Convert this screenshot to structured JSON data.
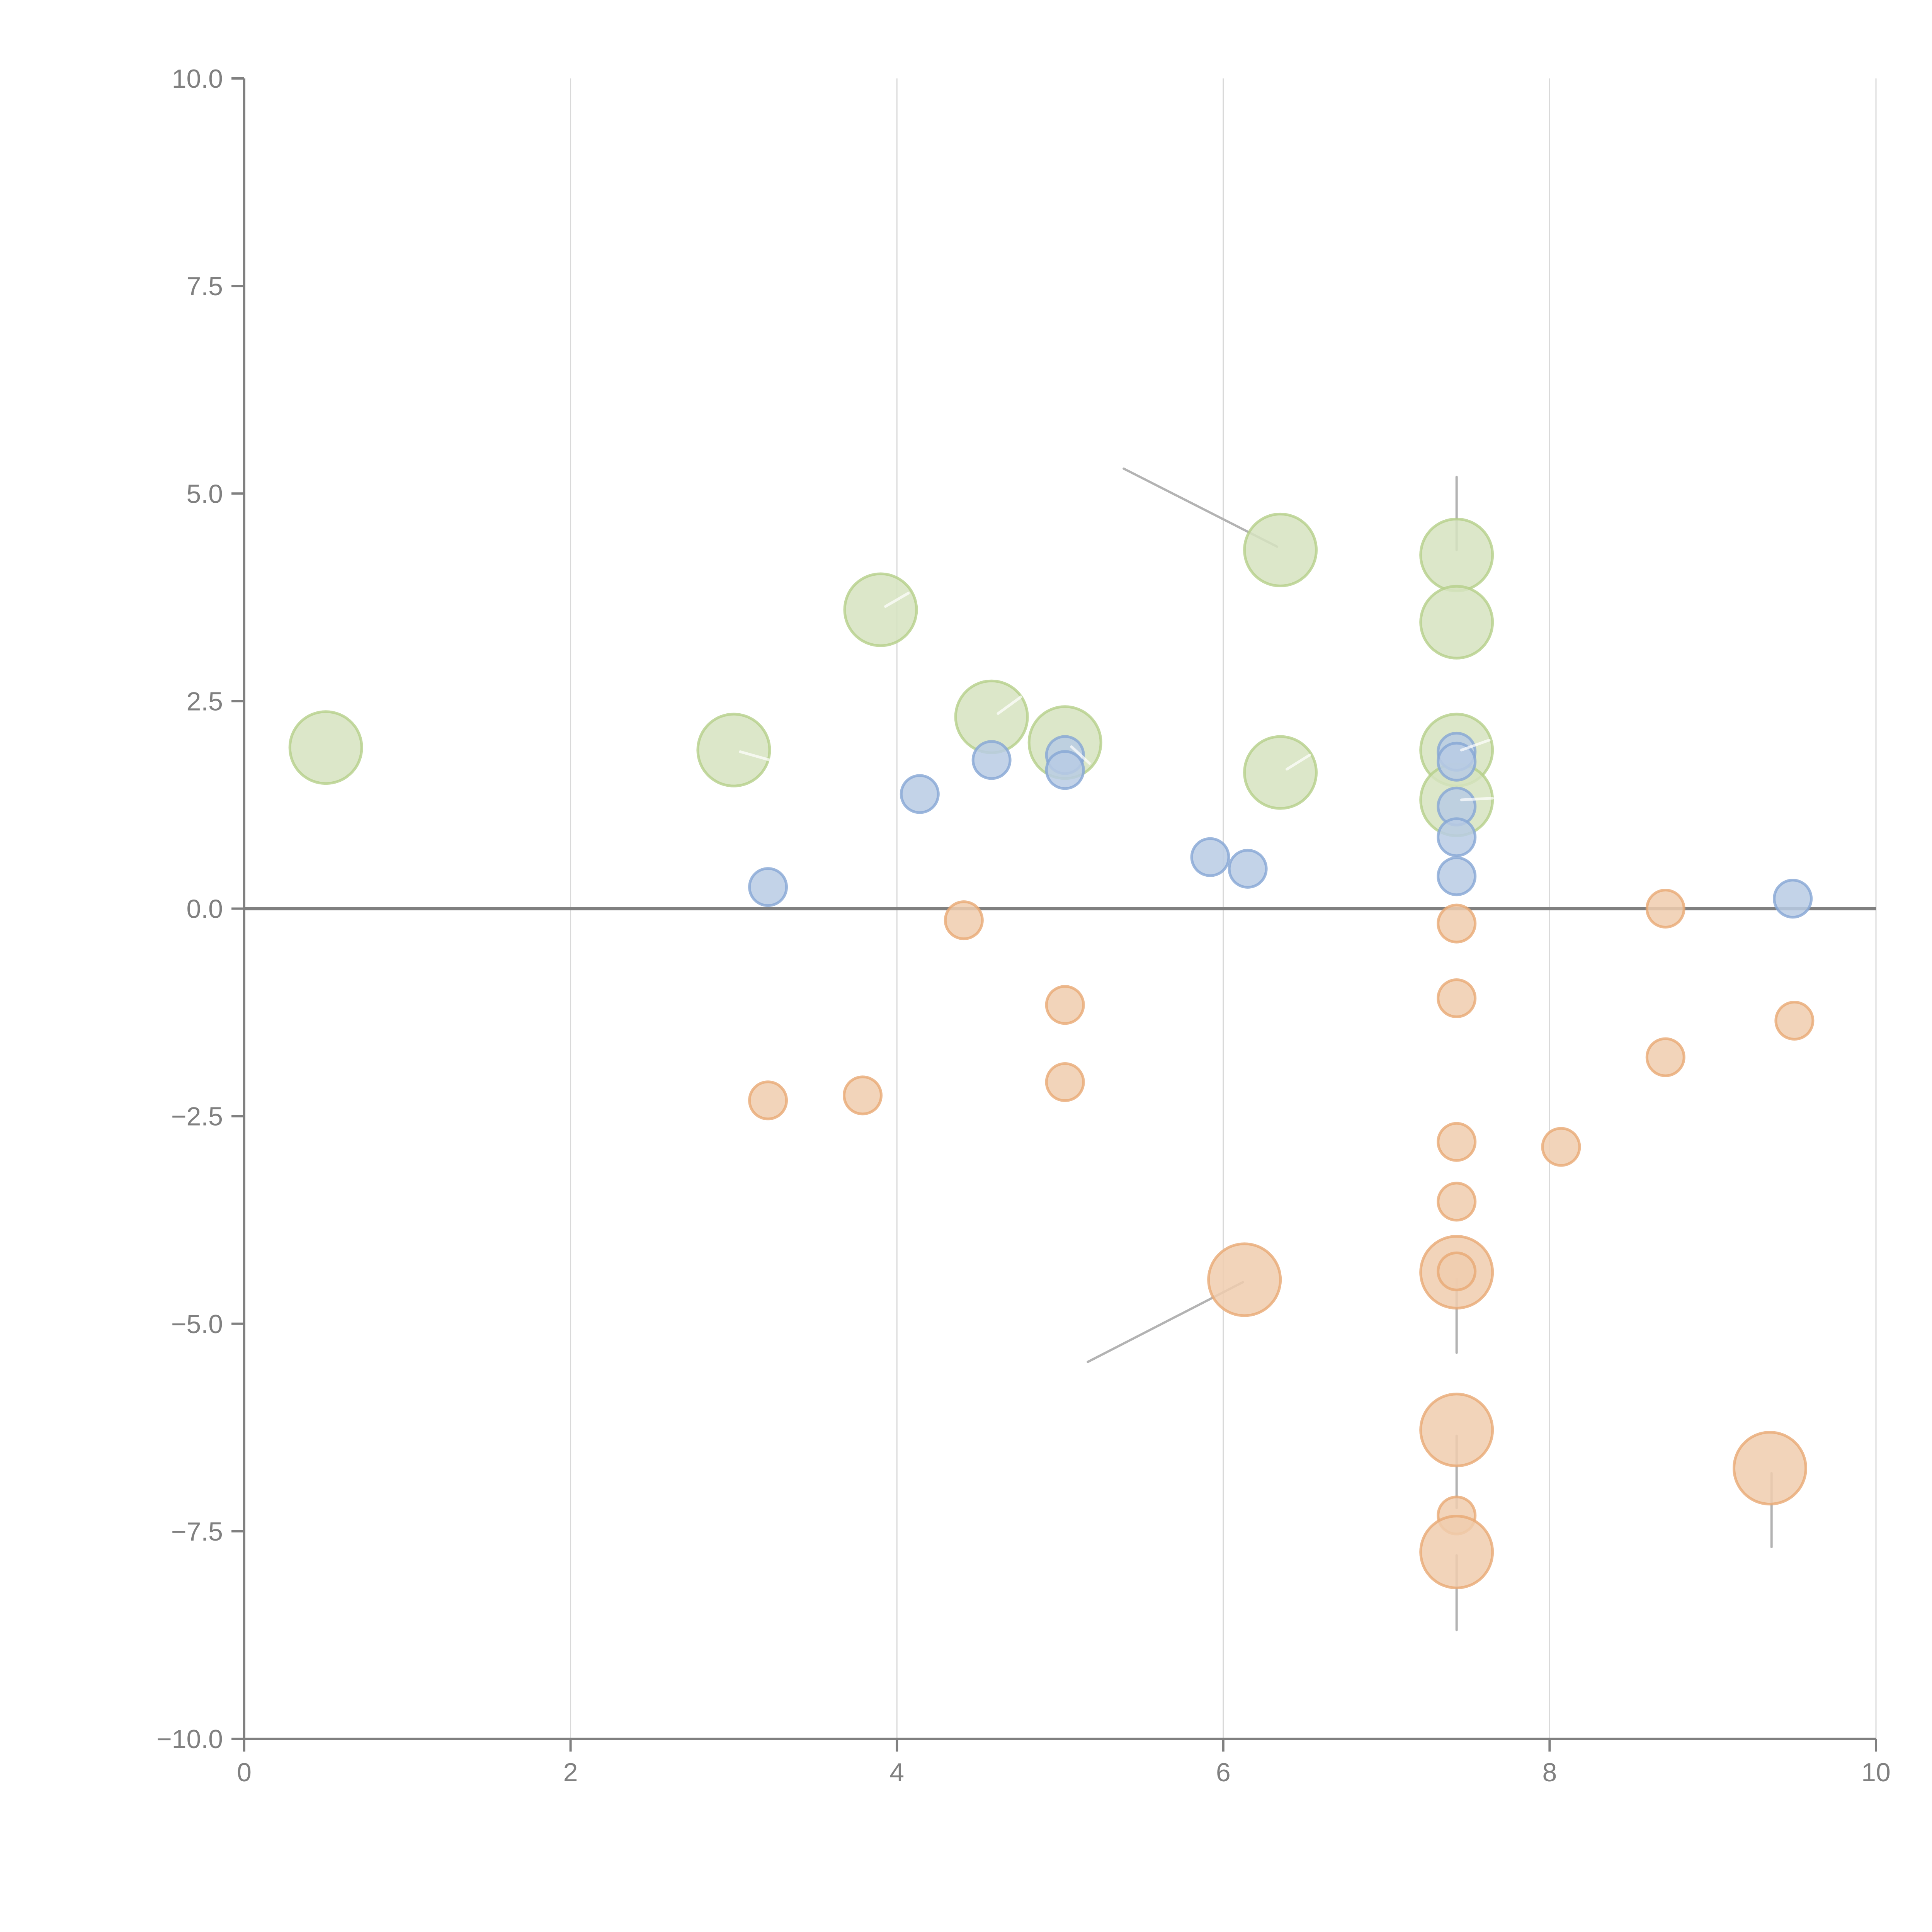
{
  "chart_data": {
    "type": "scatter",
    "title": "",
    "xlabel": "",
    "ylabel": "",
    "xlim": [
      0,
      10
    ],
    "ylim": [
      -10,
      10
    ],
    "grid": "vertical",
    "x_ticks": [
      "0",
      "2",
      "4",
      "6",
      "8",
      "10"
    ],
    "x_tick_values": [
      0,
      2,
      4,
      6,
      8,
      10
    ],
    "y_ticks": [
      "10.0",
      "7.5",
      "5.0",
      "2.5",
      "0.0",
      "−2.5",
      "−5.0",
      "−7.5",
      "−10.0"
    ],
    "y_tick_values": [
      10,
      7.5,
      5,
      2.5,
      0,
      -2.5,
      -5,
      -7.5,
      -10
    ],
    "zero_line": true,
    "series": [
      {
        "name": "green",
        "fill": "#d6e3bf",
        "stroke": "#b5cf8a",
        "points": [
          {
            "x": 0.5,
            "y": 1.94,
            "size": "large"
          },
          {
            "x": 3.0,
            "y": 1.91,
            "size": "large"
          },
          {
            "x": 3.9,
            "y": 3.6,
            "size": "large"
          },
          {
            "x": 4.58,
            "y": 2.31,
            "size": "large"
          },
          {
            "x": 5.03,
            "y": 2.0,
            "size": "large"
          },
          {
            "x": 6.35,
            "y": 4.32,
            "size": "large"
          },
          {
            "x": 6.35,
            "y": 1.64,
            "size": "large"
          },
          {
            "x": 7.43,
            "y": 4.26,
            "size": "large"
          },
          {
            "x": 7.43,
            "y": 3.45,
            "size": "large"
          },
          {
            "x": 7.43,
            "y": 1.91,
            "size": "large"
          },
          {
            "x": 7.43,
            "y": 1.31,
            "size": "large"
          }
        ]
      },
      {
        "name": "blue",
        "fill": "#b8cbe4",
        "stroke": "#86a6d4",
        "points": [
          {
            "x": 3.21,
            "y": 0.26,
            "size": "small"
          },
          {
            "x": 4.14,
            "y": 1.38,
            "size": "small"
          },
          {
            "x": 4.58,
            "y": 1.79,
            "size": "small"
          },
          {
            "x": 5.03,
            "y": 1.85,
            "size": "small"
          },
          {
            "x": 5.03,
            "y": 1.67,
            "size": "small"
          },
          {
            "x": 5.92,
            "y": 0.62,
            "size": "small"
          },
          {
            "x": 6.15,
            "y": 0.48,
            "size": "small"
          },
          {
            "x": 7.43,
            "y": 1.89,
            "size": "small"
          },
          {
            "x": 7.43,
            "y": 1.77,
            "size": "small"
          },
          {
            "x": 7.43,
            "y": 1.23,
            "size": "small"
          },
          {
            "x": 7.43,
            "y": 0.86,
            "size": "small"
          },
          {
            "x": 7.43,
            "y": 0.39,
            "size": "small"
          },
          {
            "x": 9.49,
            "y": 0.12,
            "size": "small"
          }
        ]
      },
      {
        "name": "orange",
        "fill": "#f0cdae",
        "stroke": "#e8a974",
        "points": [
          {
            "x": 4.41,
            "y": -0.14,
            "size": "small"
          },
          {
            "x": 5.03,
            "y": -1.16,
            "size": "small"
          },
          {
            "x": 5.03,
            "y": -2.09,
            "size": "small"
          },
          {
            "x": 3.21,
            "y": -2.31,
            "size": "small"
          },
          {
            "x": 3.79,
            "y": -2.25,
            "size": "small"
          },
          {
            "x": 7.43,
            "y": -0.18,
            "size": "small"
          },
          {
            "x": 7.43,
            "y": -1.08,
            "size": "small"
          },
          {
            "x": 7.43,
            "y": -2.81,
            "size": "small"
          },
          {
            "x": 7.43,
            "y": -3.53,
            "size": "small"
          },
          {
            "x": 7.43,
            "y": -4.38,
            "size": "large"
          },
          {
            "x": 7.43,
            "y": -4.37,
            "size": "small"
          },
          {
            "x": 6.13,
            "y": -4.47,
            "size": "large"
          },
          {
            "x": 7.43,
            "y": -6.28,
            "size": "large"
          },
          {
            "x": 7.43,
            "y": -7.31,
            "size": "small"
          },
          {
            "x": 7.43,
            "y": -7.75,
            "size": "large"
          },
          {
            "x": 9.35,
            "y": -6.74,
            "size": "large"
          },
          {
            "x": 8.71,
            "y": 0.0,
            "size": "small"
          },
          {
            "x": 8.71,
            "y": -1.79,
            "size": "small"
          },
          {
            "x": 9.5,
            "y": -1.35,
            "size": "small"
          },
          {
            "x": 8.07,
            "y": -2.87,
            "size": "small"
          }
        ]
      }
    ],
    "annotation_leaders": [
      {
        "from": [
          5.39,
          5.3
        ],
        "to": [
          6.33,
          4.36
        ]
      },
      {
        "from": [
          7.43,
          5.2
        ],
        "to": [
          7.43,
          4.32
        ]
      },
      {
        "from": [
          5.17,
          -5.46
        ],
        "to": [
          6.12,
          -4.5
        ]
      },
      {
        "from": [
          7.43,
          -4.46
        ],
        "to": [
          7.43,
          -5.35
        ]
      },
      {
        "from": [
          7.43,
          -6.35
        ],
        "to": [
          7.43,
          -7.22
        ]
      },
      {
        "from": [
          7.43,
          -7.79
        ],
        "to": [
          7.43,
          -8.69
        ]
      },
      {
        "from": [
          9.36,
          -6.8
        ],
        "to": [
          9.36,
          -7.69
        ]
      }
    ],
    "inner_ticks": [
      {
        "from": [
          3.93,
          3.64
        ],
        "to": [
          4.07,
          3.8
        ]
      },
      {
        "from": [
          4.62,
          2.35
        ],
        "to": [
          4.76,
          2.55
        ]
      },
      {
        "from": [
          5.07,
          1.95
        ],
        "to": [
          5.18,
          1.75
        ]
      },
      {
        "from": [
          3.04,
          1.89
        ],
        "to": [
          3.22,
          1.79
        ]
      },
      {
        "from": [
          6.39,
          1.68
        ],
        "to": [
          6.53,
          1.85
        ]
      },
      {
        "from": [
          7.46,
          1.91
        ],
        "to": [
          7.63,
          2.03
        ]
      },
      {
        "from": [
          7.46,
          1.31
        ],
        "to": [
          7.65,
          1.33
        ]
      }
    ],
    "colors": {
      "axis": "#808080",
      "grid": "#d9d9d9",
      "leader": "#b3b3b3"
    }
  }
}
